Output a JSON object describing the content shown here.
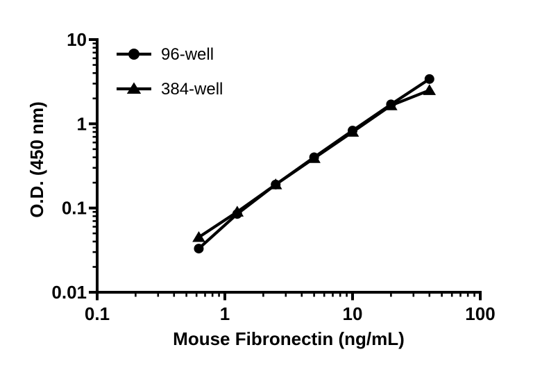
{
  "figure": {
    "background_color": "#ffffff",
    "ink_color": "#000000"
  },
  "legend": {
    "entries": [
      {
        "label": "96-well",
        "marker": "circle-icon"
      },
      {
        "label": "384-well",
        "marker": "triangle-icon"
      }
    ],
    "position": "top-left-inside"
  },
  "chart_data": {
    "type": "line",
    "x_scale": "log",
    "y_scale": "log",
    "title": "",
    "xlabel": "Mouse Fibronectin (ng/mL)",
    "ylabel": "O.D. (450 nm)",
    "xlim": [
      0.1,
      100
    ],
    "ylim": [
      0.01,
      10
    ],
    "x_ticks": [
      0.1,
      1,
      10,
      100
    ],
    "x_tick_labels": [
      "0.1",
      "1",
      "10",
      "100"
    ],
    "y_ticks": [
      0.01,
      0.1,
      1,
      10
    ],
    "y_tick_labels": [
      "0.01",
      "0.1",
      "1",
      "10"
    ],
    "grid": false,
    "legend_position": "top-left-inside",
    "x": [
      0.625,
      1.25,
      2.5,
      5,
      10,
      20,
      40
    ],
    "series": [
      {
        "name": "96-well",
        "marker": "circle",
        "values": [
          0.033,
          0.085,
          0.19,
          0.4,
          0.83,
          1.7,
          3.4
        ]
      },
      {
        "name": "384-well",
        "marker": "triangle",
        "values": [
          0.045,
          0.09,
          0.19,
          0.39,
          0.8,
          1.65,
          2.5
        ]
      }
    ]
  }
}
